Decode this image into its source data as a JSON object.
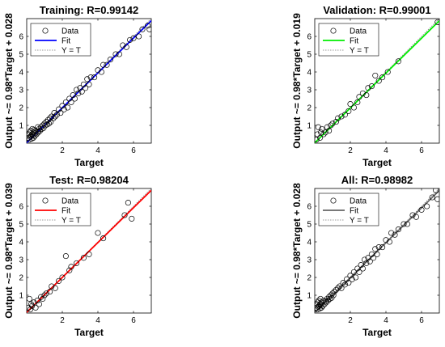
{
  "chart_data": [
    {
      "type": "scatter",
      "title": "Training: R=0.99142",
      "xlabel": "Target",
      "ylabel": "Output ~= 0.98*Target + 0.028",
      "xlim": [
        0,
        7
      ],
      "ylim": [
        0,
        7
      ],
      "xticks": [
        2,
        4,
        6
      ],
      "yticks": [
        1,
        2,
        3,
        4,
        5,
        6
      ],
      "fit": {
        "slope": 0.98,
        "intercept": 0.028
      },
      "colors": {
        "fit": "#0000ff"
      },
      "legend": {
        "position": "top-left",
        "entries": [
          "Data",
          "Fit",
          "Y = T"
        ]
      },
      "series": [
        {
          "x": [
            0.1,
            0.12,
            0.15,
            0.18,
            0.2,
            0.22,
            0.25,
            0.28,
            0.3,
            0.32,
            0.35,
            0.38,
            0.4,
            0.42,
            0.45,
            0.48,
            0.5,
            0.55,
            0.6,
            0.62,
            0.65,
            0.7,
            0.75,
            0.8,
            0.85,
            0.9,
            0.95,
            1.0,
            1.05,
            1.1,
            1.15,
            1.2,
            1.25,
            1.3,
            1.35,
            1.4,
            1.5,
            1.55,
            1.6,
            1.7,
            1.8,
            1.9,
            2.0,
            2.1,
            2.2,
            2.3,
            2.4,
            2.5,
            2.6,
            2.7,
            2.8,
            2.9,
            3.0,
            3.1,
            3.2,
            3.3,
            3.4,
            3.5,
            3.6,
            3.8,
            4.0,
            4.2,
            4.3,
            4.5,
            4.7,
            5.0,
            5.2,
            5.4,
            5.6,
            5.8,
            6.0,
            6.3,
            6.5,
            6.8,
            6.9
          ],
          "y": [
            0.3,
            0.5,
            0.2,
            0.6,
            0.35,
            0.7,
            0.4,
            0.25,
            0.5,
            0.8,
            0.45,
            0.3,
            0.6,
            0.75,
            0.4,
            0.55,
            0.7,
            0.5,
            0.65,
            0.9,
            0.6,
            0.8,
            0.7,
            0.9,
            0.8,
            1.0,
            0.85,
            1.1,
            1.0,
            1.2,
            1.05,
            1.3,
            1.1,
            1.4,
            1.2,
            1.5,
            1.4,
            1.7,
            1.5,
            1.6,
            1.9,
            1.7,
            2.1,
            1.9,
            2.3,
            2.0,
            2.5,
            2.3,
            2.7,
            2.5,
            3.0,
            2.8,
            3.1,
            2.9,
            3.3,
            3.1,
            3.6,
            3.3,
            3.7,
            3.7,
            4.1,
            4.0,
            4.4,
            4.4,
            4.7,
            5.0,
            5.0,
            5.5,
            5.4,
            5.8,
            5.9,
            6.0,
            6.4,
            6.6,
            6.4
          ]
        }
      ]
    },
    {
      "type": "scatter",
      "title": "Validation: R=0.99001",
      "xlabel": "Target",
      "ylabel": "Output ~= 0.98*Target + 0.019",
      "xlim": [
        0,
        7
      ],
      "ylim": [
        0,
        7
      ],
      "xticks": [
        2,
        4,
        6
      ],
      "yticks": [
        1,
        2,
        3,
        4,
        5,
        6
      ],
      "fit": {
        "slope": 0.98,
        "intercept": 0.019
      },
      "colors": {
        "fit": "#00ee00"
      },
      "legend": {
        "position": "top-left",
        "entries": [
          "Data",
          "Fit",
          "Y = T"
        ]
      },
      "series": [
        {
          "x": [
            0.1,
            0.15,
            0.2,
            0.3,
            0.35,
            0.4,
            0.5,
            0.6,
            0.7,
            0.8,
            0.9,
            1.0,
            1.2,
            1.3,
            1.5,
            1.7,
            1.9,
            2.0,
            2.2,
            2.4,
            2.5,
            2.7,
            2.9,
            3.0,
            3.2,
            3.4,
            3.6,
            3.8,
            4.1,
            4.7,
            6.9
          ],
          "y": [
            0.2,
            0.5,
            0.9,
            0.3,
            0.6,
            0.8,
            0.5,
            0.6,
            0.9,
            0.7,
            1.0,
            1.1,
            1.2,
            1.4,
            1.5,
            1.6,
            1.8,
            2.2,
            2.0,
            2.3,
            2.6,
            2.8,
            2.7,
            3.1,
            3.2,
            3.8,
            3.5,
            3.7,
            4.0,
            4.6,
            6.8
          ]
        }
      ]
    },
    {
      "type": "scatter",
      "title": "Test: R=0.98204",
      "xlabel": "Target",
      "ylabel": "Output ~= 0.98*Target + 0.039",
      "xlim": [
        0,
        7
      ],
      "ylim": [
        0,
        7
      ],
      "xticks": [
        2,
        4,
        6
      ],
      "yticks": [
        1,
        2,
        3,
        4,
        5,
        6
      ],
      "fit": {
        "slope": 0.98,
        "intercept": 0.039
      },
      "colors": {
        "fit": "#ff0000"
      },
      "legend": {
        "position": "top-left",
        "entries": [
          "Data",
          "Fit",
          "Y = T"
        ]
      },
      "series": [
        {
          "x": [
            0.1,
            0.15,
            0.2,
            0.25,
            0.3,
            0.4,
            0.5,
            0.6,
            0.7,
            0.8,
            0.9,
            1.0,
            1.1,
            1.3,
            1.4,
            1.6,
            1.8,
            2.0,
            2.2,
            2.4,
            2.5,
            2.8,
            3.2,
            3.5,
            4.0,
            4.3,
            5.5,
            5.7,
            5.9
          ],
          "y": [
            0.3,
            0.8,
            0.2,
            0.5,
            0.4,
            0.6,
            0.3,
            0.7,
            0.5,
            0.9,
            0.8,
            1.0,
            1.1,
            1.2,
            1.5,
            1.4,
            1.8,
            2.0,
            3.2,
            2.4,
            2.6,
            2.8,
            3.1,
            3.3,
            4.5,
            4.2,
            5.5,
            6.2,
            5.3
          ]
        }
      ]
    },
    {
      "type": "scatter",
      "title": "All: R=0.98982",
      "xlabel": "Target",
      "ylabel": "Output ~= 0.98*Target + 0.028",
      "xlim": [
        0,
        7
      ],
      "ylim": [
        0,
        7
      ],
      "xticks": [
        2,
        4,
        6
      ],
      "yticks": [
        1,
        2,
        3,
        4,
        5,
        6
      ],
      "fit": {
        "slope": 0.98,
        "intercept": 0.028
      },
      "colors": {
        "fit": "#666666"
      },
      "legend": {
        "position": "top-left",
        "entries": [
          "Data",
          "Fit",
          "Y = T"
        ]
      },
      "series": [
        {
          "x": [
            0.1,
            0.12,
            0.15,
            0.18,
            0.2,
            0.22,
            0.25,
            0.28,
            0.3,
            0.32,
            0.35,
            0.38,
            0.4,
            0.45,
            0.5,
            0.55,
            0.6,
            0.65,
            0.7,
            0.75,
            0.8,
            0.85,
            0.9,
            0.95,
            1.0,
            1.05,
            1.1,
            1.2,
            1.3,
            1.4,
            1.5,
            1.6,
            1.7,
            1.8,
            1.9,
            2.0,
            2.1,
            2.2,
            2.3,
            2.4,
            2.5,
            2.6,
            2.7,
            2.8,
            2.9,
            3.0,
            3.1,
            3.2,
            3.3,
            3.4,
            3.5,
            3.6,
            3.8,
            4.0,
            4.2,
            4.3,
            4.5,
            4.7,
            5.0,
            5.2,
            5.5,
            5.7,
            6.0,
            6.3,
            6.6,
            6.8,
            6.9
          ],
          "y": [
            0.3,
            0.5,
            0.2,
            0.6,
            0.35,
            0.7,
            0.4,
            0.25,
            0.5,
            0.8,
            0.45,
            0.3,
            0.6,
            0.4,
            0.7,
            0.5,
            0.65,
            0.6,
            0.8,
            0.7,
            0.9,
            0.8,
            1.0,
            0.85,
            1.1,
            1.0,
            1.2,
            1.3,
            1.4,
            1.5,
            1.4,
            1.7,
            1.6,
            1.9,
            1.7,
            2.1,
            1.9,
            2.3,
            2.0,
            2.5,
            2.3,
            2.7,
            2.5,
            3.0,
            2.8,
            3.1,
            2.9,
            3.3,
            3.1,
            3.6,
            3.3,
            3.7,
            3.7,
            4.1,
            4.0,
            4.5,
            4.4,
            4.7,
            5.0,
            5.0,
            5.5,
            5.4,
            5.8,
            6.0,
            6.5,
            6.9,
            6.4
          ]
        }
      ]
    }
  ]
}
